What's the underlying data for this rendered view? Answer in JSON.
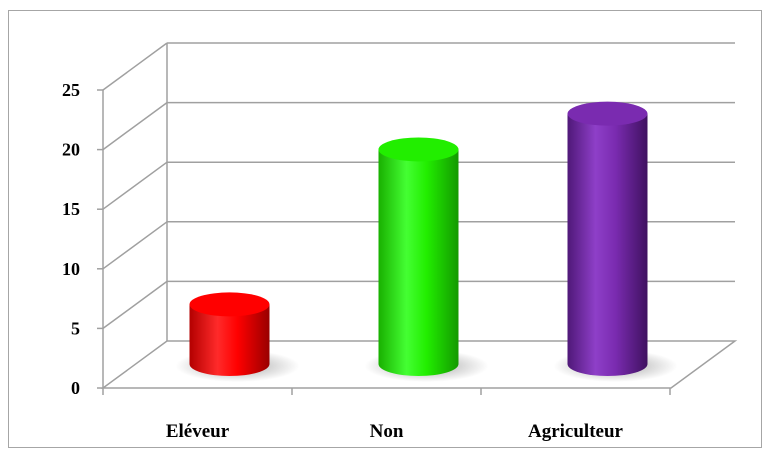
{
  "chart_data": {
    "type": "bar",
    "style": "3d-cylinder",
    "categories": [
      "Eléveur",
      "Non",
      "Agriculteur"
    ],
    "values": [
      5,
      18,
      21
    ],
    "colors": [
      "#ff0000",
      "#22ee00",
      "#7a2bb0"
    ],
    "ylim": [
      0,
      25
    ],
    "yticks": [
      "0",
      "5",
      "10",
      "15",
      "20",
      "25"
    ],
    "grid": true,
    "legend": "none"
  }
}
